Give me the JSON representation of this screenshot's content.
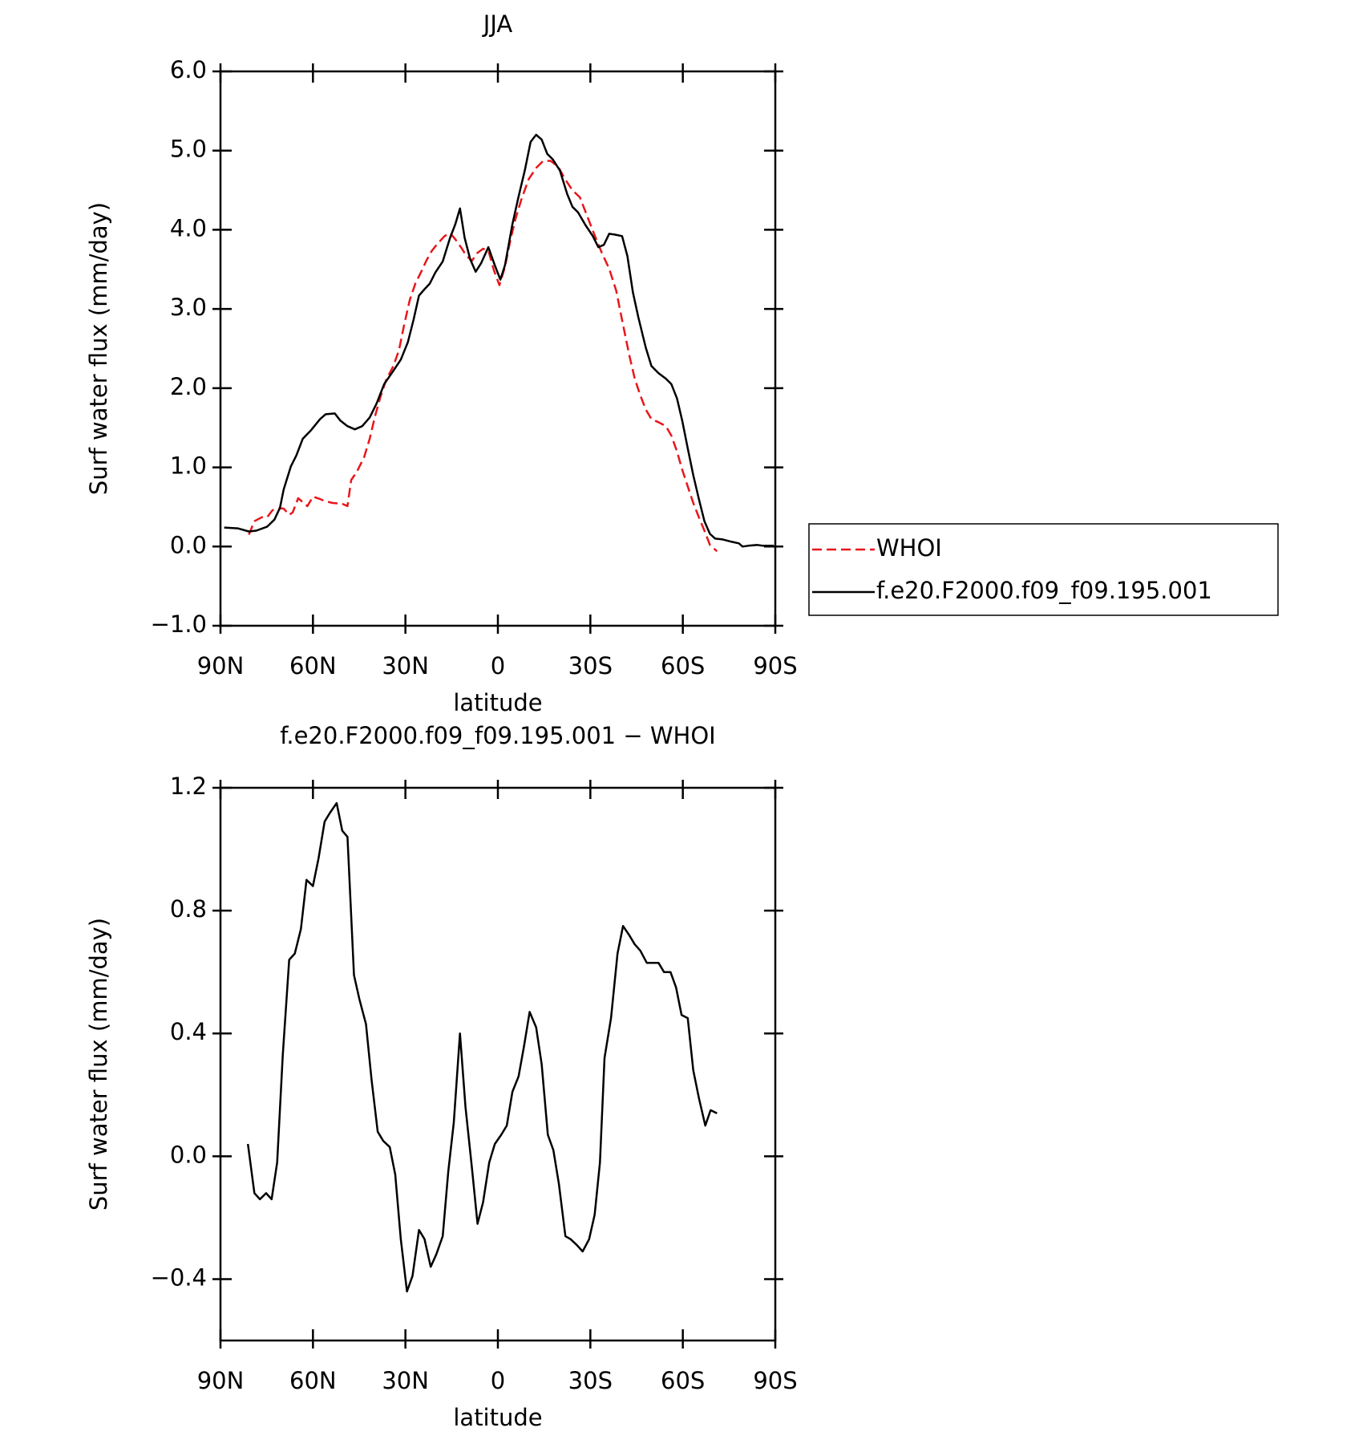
{
  "chart_data": [
    {
      "type": "line",
      "title": "JJA",
      "xlabel": "latitude",
      "ylabel": "Surf water flux (mm/day)",
      "xlim": [
        90,
        -90
      ],
      "xticks": [
        {
          "value": 90,
          "label": "90N"
        },
        {
          "value": 60,
          "label": "60N"
        },
        {
          "value": 30,
          "label": "30N"
        },
        0,
        {
          "value": -30,
          "label": "30S"
        },
        {
          "value": -60,
          "label": "60S"
        },
        {
          "value": -90,
          "label": "90S"
        }
      ],
      "ylim": [
        -1,
        6
      ],
      "yticks": [
        {
          "value": -1,
          "label": "−1.0"
        },
        {
          "value": 0,
          "label": "0.0"
        },
        {
          "value": 1,
          "label": "1.0"
        },
        {
          "value": 2,
          "label": "2.0"
        },
        {
          "value": 3,
          "label": "3.0"
        },
        {
          "value": 4,
          "label": "4.0"
        },
        {
          "value": 5,
          "label": "5.0"
        },
        {
          "value": 6,
          "label": "6.0"
        }
      ],
      "legend": "right",
      "series": [
        {
          "name": "WHOI",
          "color": "#e8161b",
          "dashed": true,
          "x": [
            80.8,
            79,
            76.6,
            74.9,
            73.1,
            71.3,
            69.5,
            67.7,
            66.6,
            64.8,
            63.6,
            61.8,
            60,
            57.7,
            55.9,
            53.5,
            50.5,
            48.8,
            47.6,
            45.8,
            43.4,
            41.6,
            39.9,
            38.1,
            36.3,
            33.9,
            32.1,
            30.4,
            28.6,
            26.8,
            25,
            23.2,
            21.5,
            19.7,
            17.3,
            15.5,
            13.8,
            12,
            10.2,
            8.4,
            6.6,
            4.8,
            3.1,
            1.3,
            -0.5,
            -2.3,
            -4.1,
            -5.8,
            -7.6,
            -10,
            -12.4,
            -14.7,
            -17.1,
            -19.5,
            -21.8,
            -24.2,
            -26.6,
            -28.9,
            -31.3,
            -33.7,
            -36.1,
            -38.4,
            -40.3,
            -42.6,
            -44.4,
            -46.2,
            -48,
            -49.8,
            -52.1,
            -54.5,
            -56.3,
            -58.1,
            -59.8,
            -61.6,
            -63.4,
            -65.2,
            -67,
            -68.8,
            -71.1
          ],
          "values": [
            0.15,
            0.32,
            0.37,
            0.37,
            0.46,
            0.48,
            0.48,
            0.4,
            0.43,
            0.61,
            0.57,
            0.51,
            0.63,
            0.6,
            0.57,
            0.55,
            0.54,
            0.51,
            0.84,
            0.94,
            1.13,
            1.36,
            1.64,
            1.89,
            2.1,
            2.28,
            2.48,
            2.8,
            3.11,
            3.32,
            3.46,
            3.61,
            3.73,
            3.82,
            3.92,
            3.96,
            3.88,
            3.78,
            3.67,
            3.61,
            3.71,
            3.76,
            3.74,
            3.49,
            3.3,
            3.53,
            3.88,
            4.15,
            4.38,
            4.64,
            4.78,
            4.87,
            4.87,
            4.8,
            4.64,
            4.5,
            4.41,
            4.18,
            3.94,
            3.71,
            3.51,
            3.23,
            2.86,
            2.42,
            2.12,
            1.91,
            1.73,
            1.61,
            1.57,
            1.52,
            1.4,
            1.2,
            0.97,
            0.76,
            0.55,
            0.37,
            0.2,
            0.02,
            -0.06
          ]
        },
        {
          "name": "f.e20.F2000.f09_f09.195.001",
          "color": "#000000",
          "dashed": false,
          "x": [
            88.8,
            84.4,
            80.8,
            78.4,
            74.9,
            72.5,
            70.7,
            69.5,
            67.2,
            65.4,
            63.3,
            60.6,
            57.7,
            55.9,
            52.9,
            51.1,
            48.8,
            46.4,
            44,
            41.6,
            39.3,
            36.9,
            33.9,
            31.5,
            29.2,
            27.4,
            25.6,
            23.8,
            22.1,
            20.3,
            17.9,
            15.5,
            13.8,
            12.3,
            10.8,
            9,
            7.2,
            5.4,
            3.1,
            1,
            -0.8,
            -2.3,
            -4.7,
            -6.7,
            -8.8,
            -10.6,
            -12.4,
            -14.2,
            -16,
            -17.8,
            -20.1,
            -22.5,
            -24.2,
            -26,
            -28.4,
            -30.8,
            -32.6,
            -34.4,
            -36.1,
            -37.9,
            -40.3,
            -42,
            -43.8,
            -45.6,
            -48,
            -49.8,
            -52.1,
            -54.5,
            -56.3,
            -58.1,
            -59.8,
            -61.6,
            -63.4,
            -65.2,
            -67,
            -68.8,
            -70.5,
            -72.9,
            -75.9,
            -78.2,
            -79.4,
            -81.2,
            -84.2,
            -86,
            -89.5
          ],
          "values": [
            0.24,
            0.23,
            0.19,
            0.2,
            0.25,
            0.34,
            0.49,
            0.72,
            1.01,
            1.15,
            1.36,
            1.47,
            1.61,
            1.67,
            1.68,
            1.59,
            1.52,
            1.48,
            1.52,
            1.63,
            1.81,
            2.05,
            2.22,
            2.36,
            2.58,
            2.86,
            3.17,
            3.25,
            3.32,
            3.46,
            3.6,
            3.9,
            4.07,
            4.27,
            3.9,
            3.63,
            3.47,
            3.58,
            3.78,
            3.55,
            3.37,
            3.55,
            4.07,
            4.42,
            4.76,
            5.11,
            5.2,
            5.14,
            4.96,
            4.89,
            4.75,
            4.45,
            4.29,
            4.22,
            4.06,
            3.92,
            3.78,
            3.81,
            3.95,
            3.94,
            3.92,
            3.67,
            3.21,
            2.89,
            2.51,
            2.28,
            2.19,
            2.12,
            2.05,
            1.87,
            1.59,
            1.24,
            0.9,
            0.6,
            0.32,
            0.16,
            0.1,
            0.09,
            0.06,
            0.04,
            0,
            0.01,
            0.02,
            0.01,
            0.01
          ]
        }
      ]
    },
    {
      "type": "line",
      "title": "f.e20.F2000.f09_f09.195.001 − WHOI",
      "xlabel": "latitude",
      "ylabel": "Surf water flux (mm/day)",
      "xlim": [
        90,
        -90
      ],
      "xticks": [
        {
          "value": 90,
          "label": "90N"
        },
        {
          "value": 60,
          "label": "60N"
        },
        {
          "value": 30,
          "label": "30N"
        },
        0,
        {
          "value": -30,
          "label": "30S"
        },
        {
          "value": -60,
          "label": "60S"
        },
        {
          "value": -90,
          "label": "90S"
        }
      ],
      "ylim": [
        -0.6,
        1.2
      ],
      "yticks": [
        {
          "value": -0.4,
          "label": "−0.4"
        },
        {
          "value": 0,
          "label": "0.0"
        },
        0.4,
        0.8,
        1.2
      ],
      "series": [
        {
          "color": "#000000",
          "dashed": false,
          "x": [
            81.1,
            79,
            77.2,
            75.2,
            73.4,
            71.6,
            69.8,
            67.7,
            65.9,
            63.9,
            62.1,
            60,
            58.2,
            56.2,
            54.4,
            52.3,
            50.5,
            48.8,
            46.7,
            44.9,
            42.8,
            41,
            39,
            37.2,
            35.1,
            33.3,
            31.5,
            29.5,
            27.7,
            25.6,
            23.8,
            21.8,
            20,
            17.9,
            16.1,
            14.3,
            12.3,
            10.5,
            8.4,
            6.6,
            4.8,
            2.8,
            1,
            -1.1,
            -2.9,
            -4.7,
            -6.7,
            -8.5,
            -10.3,
            -12.4,
            -14.2,
            -16.2,
            -18,
            -19.8,
            -21.9,
            -23.6,
            -25.7,
            -27.5,
            -29.6,
            -31.4,
            -33.1,
            -34.6,
            -36.7,
            -38.8,
            -40.6,
            -42.6,
            -44.4,
            -46.2,
            -48.3,
            -50.1,
            -52.1,
            -53.9,
            -56,
            -57.8,
            -59.6,
            -61.6,
            -63.4,
            -65.2,
            -67.3,
            -69,
            -71.1
          ],
          "values": [
            0.04,
            -0.12,
            -0.14,
            -0.12,
            -0.14,
            -0.02,
            0.33,
            0.64,
            0.66,
            0.74,
            0.9,
            0.88,
            0.97,
            1.09,
            1.12,
            1.15,
            1.06,
            1.04,
            0.59,
            0.51,
            0.43,
            0.25,
            0.08,
            0.05,
            0.03,
            -0.06,
            -0.27,
            -0.44,
            -0.39,
            -0.24,
            -0.27,
            -0.36,
            -0.32,
            -0.26,
            -0.05,
            0.11,
            0.4,
            0.16,
            -0.04,
            -0.22,
            -0.15,
            -0.02,
            0.04,
            0.07,
            0.1,
            0.21,
            0.26,
            0.36,
            0.47,
            0.42,
            0.3,
            0.07,
            0.02,
            -0.09,
            -0.26,
            -0.27,
            -0.29,
            -0.31,
            -0.27,
            -0.19,
            -0.02,
            0.32,
            0.45,
            0.66,
            0.75,
            0.72,
            0.69,
            0.67,
            0.63,
            0.63,
            0.63,
            0.6,
            0.6,
            0.55,
            0.46,
            0.45,
            0.28,
            0.19,
            0.1,
            0.15,
            0.14
          ]
        }
      ]
    }
  ]
}
